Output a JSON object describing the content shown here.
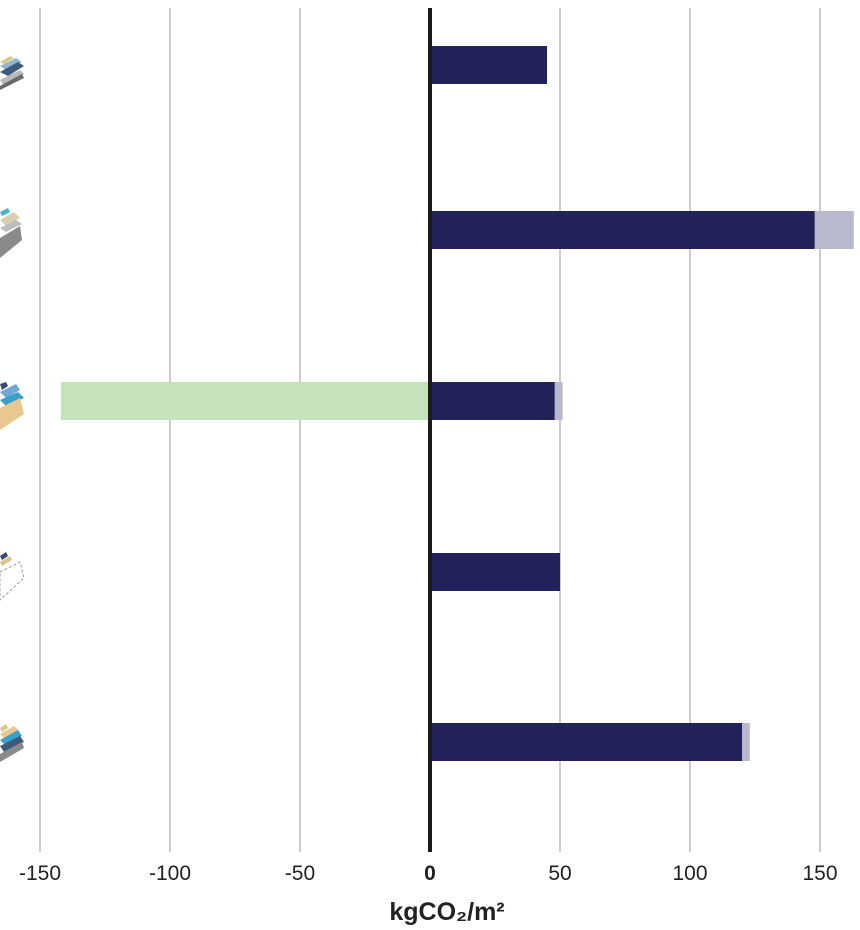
{
  "chart_data": {
    "type": "bar",
    "orientation": "horizontal",
    "stacked": true,
    "title": "",
    "xlabel": "kgCO₂/m²",
    "ylabel": "",
    "xlim": [
      -152,
      163
    ],
    "x_ticks": [
      -150,
      -100,
      -50,
      0,
      50,
      100,
      150
    ],
    "x_tick_labels": [
      "-150",
      "-100",
      "-50",
      "0",
      "50",
      "100",
      "150"
    ],
    "grid": "vertical",
    "legend": "none",
    "categories": [
      "",
      "",
      "",
      "",
      ""
    ],
    "category_icons": [
      "layered-floor-build-up-icon",
      "concrete-floor-build-up-icon",
      "timber-floor-build-up-icon",
      "light-frame-floor-build-up-icon",
      "multilayer-floor-build-up-icon"
    ],
    "series": [
      {
        "values": [
          45,
          148,
          48,
          50,
          120
        ],
        "color": "#21225a"
      },
      {
        "values": [
          0,
          15,
          3,
          0,
          3
        ],
        "color": "#b8b9cc"
      },
      {
        "values": [
          0,
          0,
          -142,
          0,
          0
        ],
        "color": "#c6e2bd"
      }
    ]
  }
}
